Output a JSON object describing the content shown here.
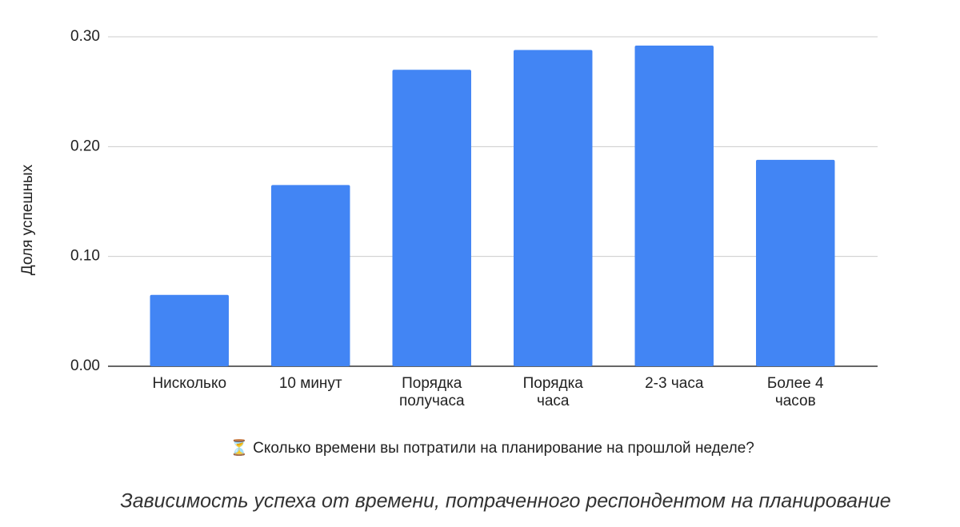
{
  "chart_data": {
    "type": "bar",
    "y_label": "Доля успешных",
    "x_label": "⏳ Сколько времени вы потратили на планирование на прошлой неделе?",
    "categories": [
      "Нисколько",
      "10 минут",
      "Порядка получаса",
      "Порядка часа",
      "2-3 часа",
      "Более 4 часов"
    ],
    "values": [
      0.065,
      0.165,
      0.27,
      0.288,
      0.292,
      0.188
    ],
    "color": "#4285f4",
    "ylim": [
      0,
      0.3
    ],
    "yticks": [
      {
        "value": 0,
        "label": "0.00"
      },
      {
        "value": 0.1,
        "label": "0.10"
      },
      {
        "value": 0.2,
        "label": "0.20"
      },
      {
        "value": 0.3,
        "label": "0.30"
      }
    ],
    "grid": true
  },
  "caption": "Зависимость успеха от времени, потраченного респондентом на планирование"
}
